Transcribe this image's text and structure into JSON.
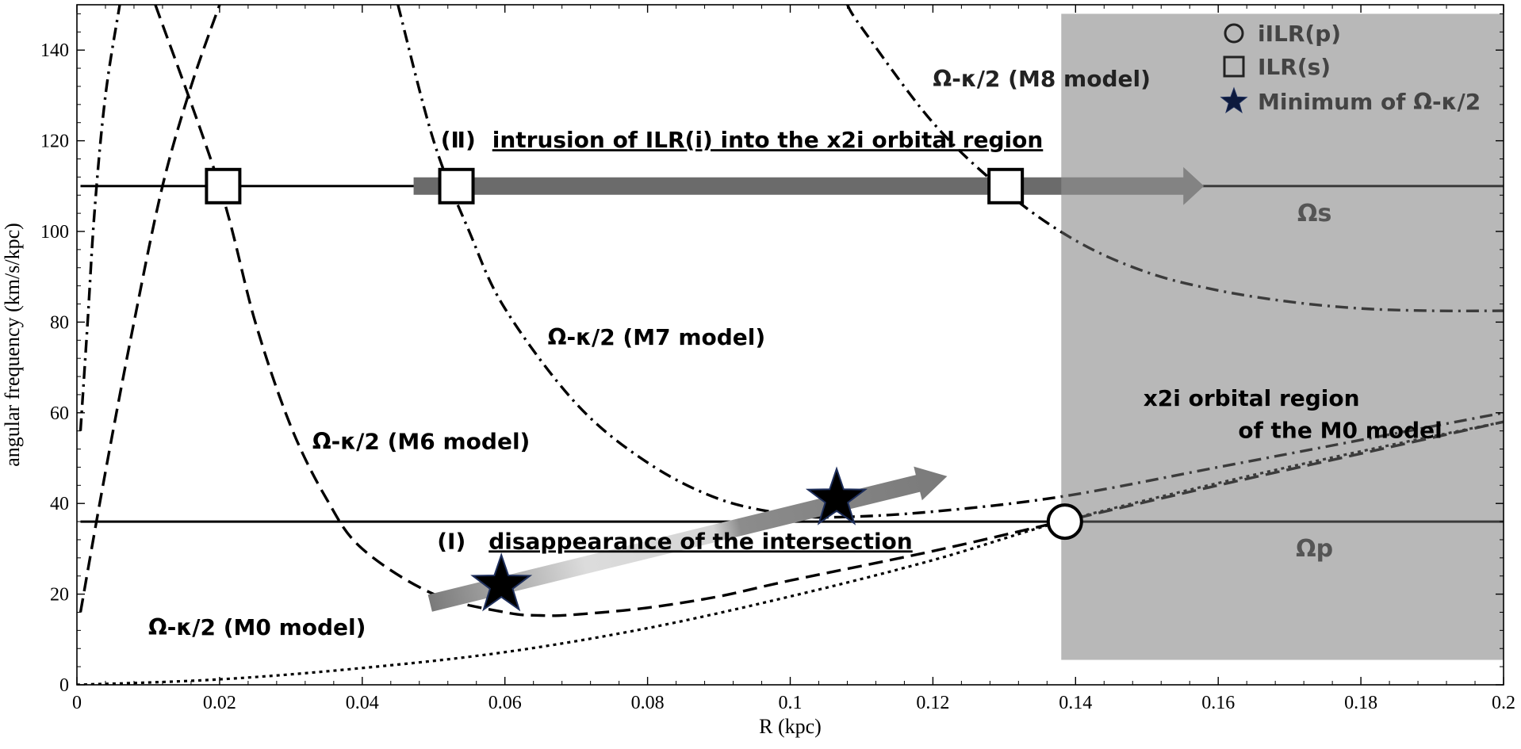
{
  "chart_data": {
    "type": "line",
    "xlabel": "R (kpc)",
    "ylabel": "angular frequency (km/s/kpc)",
    "xlim": [
      0,
      0.2
    ],
    "ylim": [
      0,
      150
    ],
    "xticks": [
      0,
      0.02,
      0.04,
      0.06,
      0.08,
      0.1,
      0.12,
      0.14,
      0.16,
      0.18,
      0.2
    ],
    "xtick_labels": [
      "0",
      "0.02",
      "0.04",
      "0.06",
      "0.08",
      "0.1",
      "0.12",
      "0.14",
      "0.16",
      "0.18",
      "0.2"
    ],
    "yticks": [
      0,
      20,
      40,
      60,
      80,
      100,
      120,
      140
    ],
    "ytick_labels": [
      "0",
      "20",
      "40",
      "60",
      "80",
      "100",
      "120",
      "140"
    ],
    "grid": false,
    "legend_position": "top-right",
    "legend": [
      {
        "marker": "circle",
        "label": "iILR(p)"
      },
      {
        "marker": "square",
        "label": "ILR(s)"
      },
      {
        "marker": "star",
        "label": "Minimum of Ω-κ/2"
      }
    ],
    "shaded_region": {
      "x": [
        0.138,
        0.2
      ],
      "y": [
        5.5,
        148
      ],
      "label_line1": "x2i orbital region",
      "label_line2": "of the M0 model"
    },
    "hlines": [
      {
        "y": 110,
        "label": "Ωs"
      },
      {
        "y": 36,
        "label": "Ωp"
      }
    ],
    "series": [
      {
        "style": "dotted",
        "label_pos": [
          0.01,
          11
        ],
        "label": "Ω-κ/2 (M0 model)",
        "x": [
          0,
          0.02,
          0.04,
          0.06,
          0.08,
          0.1,
          0.12,
          0.138,
          0.16,
          0.18,
          0.2
        ],
        "y": [
          0,
          1.2,
          3.7,
          7.2,
          12.5,
          19.5,
          27.5,
          36,
          44.5,
          51.5,
          58
        ]
      },
      {
        "style": "dashed",
        "label_pos": [
          0.033,
          52
        ],
        "label": "Ω-κ/2 (M6 model)",
        "x": [
          0.011,
          0.02,
          0.025,
          0.03,
          0.035,
          0.04,
          0.05,
          0.06,
          0.065,
          0.07,
          0.08,
          0.09,
          0.1,
          0.12,
          0.138,
          0.16,
          0.18,
          0.2
        ],
        "y": [
          150,
          110,
          80,
          57,
          41,
          30,
          20,
          16,
          15.3,
          15.5,
          17,
          19.5,
          23,
          29.5,
          36,
          44,
          51,
          58
        ]
      },
      {
        "style": "dashed",
        "x": [
          0.0005,
          0.004,
          0.008,
          0.012,
          0.016,
          0.02
        ],
        "y": [
          16,
          47,
          80,
          110,
          132,
          150
        ]
      },
      {
        "style": "dash-dot",
        "label_pos": [
          0.066,
          75
        ],
        "label": "Ω-κ/2 (M7 model)",
        "x": [
          0.045,
          0.05,
          0.055,
          0.06,
          0.07,
          0.08,
          0.09,
          0.1,
          0.107,
          0.12,
          0.138,
          0.16,
          0.18,
          0.2
        ],
        "y": [
          150,
          120,
          100,
          83,
          62,
          49,
          41,
          37.5,
          37,
          38.2,
          41.5,
          48,
          54,
          60
        ]
      },
      {
        "style": "dash-dot",
        "x": [
          0.0005,
          0.0015,
          0.0025,
          0.004,
          0.006
        ],
        "y": [
          56,
          80,
          105,
          130,
          150
        ]
      },
      {
        "style": "dash-dot",
        "label_pos": [
          0.12,
          132
        ],
        "label": "Ω-κ/2 (M8 model)",
        "x": [
          0.108,
          0.11,
          0.12,
          0.13,
          0.14,
          0.15,
          0.16,
          0.17,
          0.18,
          0.19,
          0.2
        ],
        "y": [
          150,
          145,
          124,
          109,
          98,
          91,
          87,
          84.5,
          83,
          82.5,
          82.5
        ]
      }
    ],
    "markers": [
      {
        "type": "square",
        "x": 0.0205,
        "y": 110
      },
      {
        "type": "square",
        "x": 0.0532,
        "y": 110
      },
      {
        "type": "square",
        "x": 0.1302,
        "y": 110
      },
      {
        "type": "circle",
        "x": 0.1385,
        "y": 36
      },
      {
        "type": "star",
        "x": 0.0595,
        "y": 22
      },
      {
        "type": "star",
        "x": 0.1065,
        "y": 41
      }
    ],
    "arrows": [
      {
        "style": "gradient",
        "from": [
          0.0495,
          18
        ],
        "to": [
          0.122,
          46
        ]
      },
      {
        "style": "solid",
        "from": [
          0.0472,
          110
        ],
        "to": [
          0.158,
          110
        ]
      }
    ],
    "annotations": [
      {
        "label_pos": [
          0.0505,
          30
        ],
        "prefix": "(Ⅰ)",
        "text": "disappearance of the intersection"
      },
      {
        "label_pos": [
          0.051,
          118.5
        ],
        "prefix": "(Ⅱ)",
        "text": "intrusion of ILR(i) into the x2i orbital region"
      }
    ]
  }
}
